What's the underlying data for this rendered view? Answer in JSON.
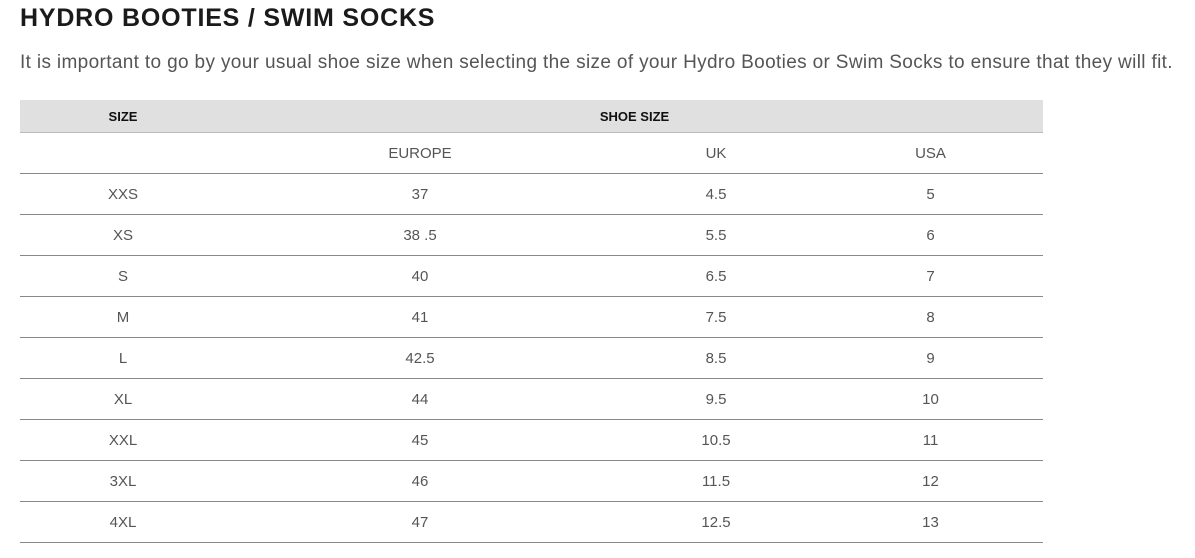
{
  "header": {
    "title": "HYDRO BOOTIES / SWIM SOCKS",
    "intro": "It is important to go by your usual shoe size when selecting the size of your Hydro Booties or Swim Socks to ensure that they will fit."
  },
  "table": {
    "head": [
      "SIZE",
      "SHOE SIZE"
    ],
    "subhead": [
      "EUROPE",
      "UK",
      "USA"
    ],
    "rows": [
      [
        "XXS",
        "37",
        "4.5",
        "5"
      ],
      [
        "XS",
        "38 .5",
        "5.5",
        "6"
      ],
      [
        "S",
        "40",
        "6.5",
        "7"
      ],
      [
        "M",
        "41",
        "7.5",
        "8"
      ],
      [
        "L",
        "42.5",
        "8.5",
        "9"
      ],
      [
        "XL",
        "44",
        "9.5",
        "10"
      ],
      [
        "XXL",
        "45",
        "10.5",
        "11"
      ],
      [
        "3XL",
        "46",
        "11.5",
        "12"
      ],
      [
        "4XL",
        "47",
        "12.5",
        "13"
      ]
    ]
  }
}
